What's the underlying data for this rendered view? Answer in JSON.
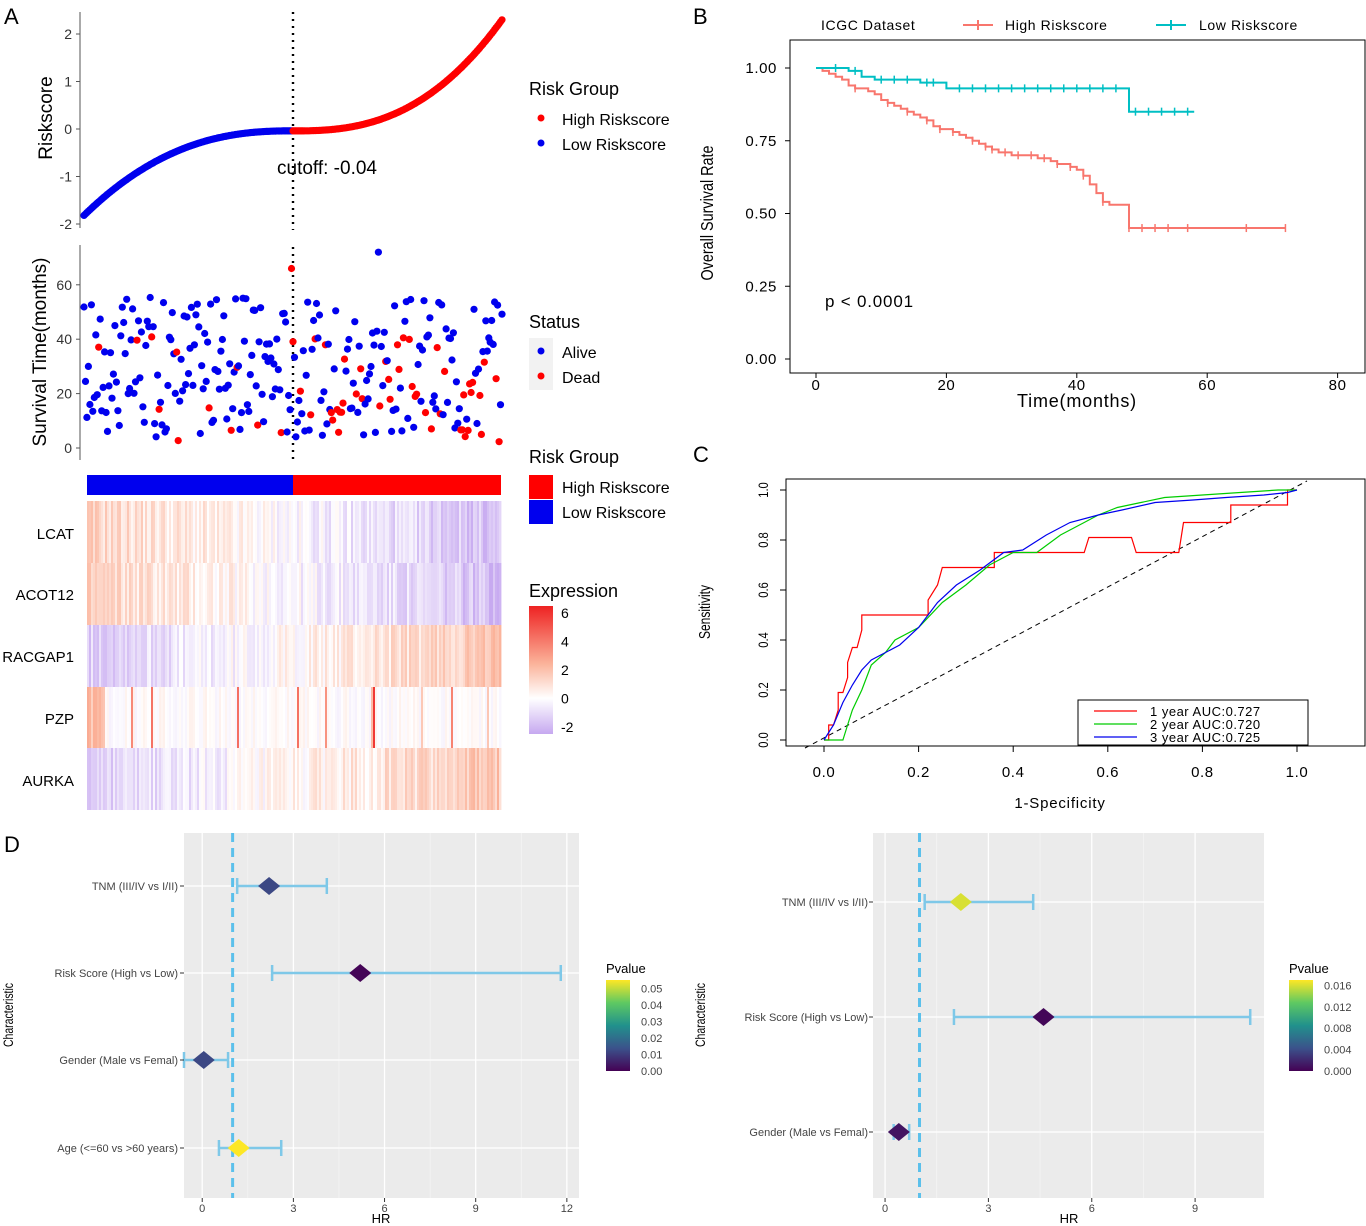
{
  "panel_labels": [
    "A",
    "B",
    "C",
    "D"
  ],
  "chart_data": [
    {
      "id": "A1",
      "type": "scatter",
      "title": "",
      "ylabel": "Riskscore",
      "ylim": [
        -2,
        2.3
      ],
      "yticks": [
        "-2",
        "-1",
        "0",
        "1",
        "2"
      ],
      "cutoff_label": "cutoff: -0.04",
      "cutoff": -0.04,
      "legend_title": "Risk Group",
      "legend": [
        {
          "name": "High Riskscore",
          "color": "#ff0000"
        },
        {
          "name": "Low Riskscore",
          "color": "#0000ee"
        }
      ],
      "n_low": 142,
      "n_high": 143,
      "risk_range": [
        -1.82,
        2.3
      ]
    },
    {
      "id": "A2",
      "type": "scatter",
      "ylabel": "Survival Time(months)",
      "ylim": [
        0,
        75
      ],
      "yticks": [
        "0",
        "20",
        "40",
        "60"
      ],
      "legend_title": "Status",
      "legend": [
        {
          "name": "Alive",
          "color": "#0000ee"
        },
        {
          "name": "Dead",
          "color": "#ff0000"
        }
      ]
    },
    {
      "id": "A3",
      "type": "heatmap",
      "group_legend_title": "Risk Group",
      "group_legend": [
        {
          "name": "High Riskscore",
          "color": "#ff0000"
        },
        {
          "name": "Low Riskscore",
          "color": "#0000ee"
        }
      ],
      "genes": [
        "LCAT",
        "ACOT12",
        "RACGAP1",
        "PZP",
        "AURKA"
      ],
      "gene_trend": [
        -1,
        -1,
        1,
        0,
        1
      ],
      "expression_legend_title": "Expression",
      "expression_ticks": [
        "6",
        "4",
        "2",
        "0",
        "-2"
      ],
      "expression_range": [
        -2.5,
        6.5
      ]
    },
    {
      "id": "B",
      "type": "line",
      "title": "ICGC Dataset",
      "xlabel": "Time(months)",
      "ylabel": "Overall Survival Rate",
      "xlim": [
        0,
        80
      ],
      "ylim": [
        0,
        1
      ],
      "xticks": [
        "0",
        "20",
        "40",
        "60",
        "80"
      ],
      "yticks": [
        "0.00",
        "0.25",
        "0.50",
        "0.75",
        "1.00"
      ],
      "pvalue_label": "p < 0.0001",
      "series": [
        {
          "name": "High Riskscore",
          "color": "#f8766d",
          "x": [
            0,
            1,
            2,
            3,
            4,
            5,
            6,
            7,
            8,
            9,
            10,
            11,
            12,
            13,
            14,
            15,
            16,
            17,
            18,
            19,
            20,
            21,
            22,
            23,
            24,
            25,
            26,
            27,
            28,
            29,
            30,
            32,
            34,
            36,
            37,
            38,
            39,
            40,
            41,
            42,
            43,
            44,
            45,
            46,
            48,
            72
          ],
          "y": [
            1.0,
            0.99,
            0.98,
            0.97,
            0.96,
            0.94,
            0.93,
            0.93,
            0.92,
            0.91,
            0.89,
            0.88,
            0.87,
            0.86,
            0.85,
            0.84,
            0.83,
            0.82,
            0.8,
            0.79,
            0.79,
            0.78,
            0.77,
            0.76,
            0.75,
            0.74,
            0.73,
            0.72,
            0.71,
            0.71,
            0.7,
            0.7,
            0.69,
            0.68,
            0.67,
            0.67,
            0.66,
            0.65,
            0.63,
            0.6,
            0.57,
            0.54,
            0.53,
            0.53,
            0.45,
            0.45
          ],
          "censor_x": [
            6,
            11,
            14,
            17,
            19,
            21,
            24,
            26,
            27,
            29,
            31,
            33,
            35,
            37,
            39,
            41,
            44,
            48,
            50,
            52,
            54,
            57,
            66,
            72
          ]
        },
        {
          "name": "Low Riskscore",
          "color": "#00bfc4",
          "x": [
            0,
            5,
            7,
            9,
            16,
            20,
            48,
            58
          ],
          "y": [
            1.0,
            0.99,
            0.97,
            0.96,
            0.95,
            0.93,
            0.85,
            0.85
          ],
          "censor_x": [
            3,
            6,
            10,
            12,
            14,
            17,
            18,
            22,
            24,
            26,
            28,
            30,
            32,
            34,
            36,
            38,
            40,
            42,
            44,
            46,
            49,
            51,
            53,
            55,
            57
          ]
        }
      ]
    },
    {
      "id": "C",
      "type": "line",
      "xlabel": "1-Specificity",
      "ylabel": "Sensitivity",
      "xlim": [
        0,
        1
      ],
      "ylim": [
        0,
        1
      ],
      "xticks": [
        "0.0",
        "0.2",
        "0.4",
        "0.6",
        "0.8",
        "1.0"
      ],
      "yticks": [
        "0.0",
        "0.2",
        "0.4",
        "0.6",
        "0.8",
        "1.0"
      ],
      "series": [
        {
          "name": "1 year AUC:0.727",
          "color": "#ff0000",
          "x": [
            0,
            0.01,
            0.01,
            0.02,
            0.03,
            0.03,
            0.04,
            0.05,
            0.05,
            0.06,
            0.07,
            0.08,
            0.08,
            0.22,
            0.22,
            0.24,
            0.25,
            0.36,
            0.36,
            0.55,
            0.56,
            0.65,
            0.66,
            0.75,
            0.76,
            0.86,
            0.86,
            0.98,
            0.98,
            1.0
          ],
          "y": [
            0,
            0,
            0.06,
            0.06,
            0.12,
            0.19,
            0.19,
            0.25,
            0.31,
            0.37,
            0.37,
            0.44,
            0.5,
            0.5,
            0.56,
            0.62,
            0.69,
            0.69,
            0.75,
            0.75,
            0.81,
            0.81,
            0.75,
            0.75,
            0.87,
            0.87,
            0.94,
            0.94,
            1.0,
            1.0
          ]
        },
        {
          "name": "2 year AUC:0.720",
          "color": "#00cc00",
          "x": [
            0,
            0.04,
            0.05,
            0.06,
            0.08,
            0.1,
            0.13,
            0.15,
            0.2,
            0.25,
            0.3,
            0.35,
            0.4,
            0.45,
            0.5,
            0.55,
            0.58,
            0.62,
            0.67,
            0.72,
            0.8,
            0.88,
            0.96,
            1.0
          ],
          "y": [
            0,
            0,
            0.06,
            0.12,
            0.2,
            0.3,
            0.35,
            0.4,
            0.45,
            0.55,
            0.62,
            0.7,
            0.75,
            0.75,
            0.82,
            0.87,
            0.9,
            0.93,
            0.95,
            0.97,
            0.98,
            0.99,
            1.0,
            1.0
          ]
        },
        {
          "name": "3 year AUC:0.725",
          "color": "#0000ee",
          "x": [
            0,
            0.01,
            0.02,
            0.04,
            0.06,
            0.08,
            0.1,
            0.13,
            0.16,
            0.2,
            0.24,
            0.28,
            0.33,
            0.38,
            0.42,
            0.47,
            0.52,
            0.58,
            0.63,
            0.7,
            0.78,
            0.85,
            0.93,
            0.98,
            1.0
          ],
          "y": [
            0,
            0.03,
            0.06,
            0.15,
            0.22,
            0.28,
            0.32,
            0.35,
            0.38,
            0.45,
            0.55,
            0.62,
            0.68,
            0.75,
            0.76,
            0.82,
            0.87,
            0.9,
            0.92,
            0.95,
            0.96,
            0.97,
            0.98,
            0.99,
            1.0
          ]
        }
      ]
    },
    {
      "id": "D1",
      "type": "scatter",
      "subtype": "forest",
      "xlabel": "HR",
      "ylabel": "Characteristic",
      "xlim": [
        -0.6,
        12.4
      ],
      "xticks": [
        0,
        3,
        6,
        9,
        12
      ],
      "ref_line": 1,
      "legend_title": "Pvalue",
      "legend_ticks": [
        "0.05",
        "0.04",
        "0.03",
        "0.02",
        "0.01",
        "0.00"
      ],
      "p_range": [
        0,
        0.055
      ],
      "rows": [
        {
          "label": "TNM (III/IV vs I/II)",
          "hr": 2.2,
          "lo": 1.15,
          "hi": 4.1,
          "p": 0.012
        },
        {
          "label": "Risk Score (High vs Low)",
          "hr": 5.2,
          "lo": 2.3,
          "hi": 11.8,
          "p": 0.0005
        },
        {
          "label": "Gender (Male vs Femal)",
          "hr": 0.05,
          "lo": -0.6,
          "hi": 0.85,
          "p": 0.012
        },
        {
          "label": "Age (<=60 vs >60 years)",
          "hr": 1.2,
          "lo": 0.55,
          "hi": 2.6,
          "p": 0.055
        }
      ]
    },
    {
      "id": "D2",
      "type": "scatter",
      "subtype": "forest",
      "xlabel": "HR",
      "ylabel": "Characteristic",
      "xlim": [
        -0.35,
        11.0
      ],
      "xticks": [
        0,
        3,
        6,
        9
      ],
      "ref_line": 1,
      "legend_title": "Pvalue",
      "legend_ticks": [
        "0.016",
        "0.012",
        "0.008",
        "0.004",
        "0.000"
      ],
      "p_range": [
        0,
        0.017
      ],
      "rows": [
        {
          "label": "TNM (III/IV vs I/II)",
          "hr": 2.2,
          "lo": 1.15,
          "hi": 4.3,
          "p": 0.016
        },
        {
          "label": "Risk Score (High vs Low)",
          "hr": 4.6,
          "lo": 2.0,
          "hi": 10.6,
          "p": 0.0003
        },
        {
          "label": "Gender (Male vs Femal)",
          "hr": 0.4,
          "lo": 0.25,
          "hi": 0.7,
          "p": 0.001
        }
      ]
    }
  ]
}
